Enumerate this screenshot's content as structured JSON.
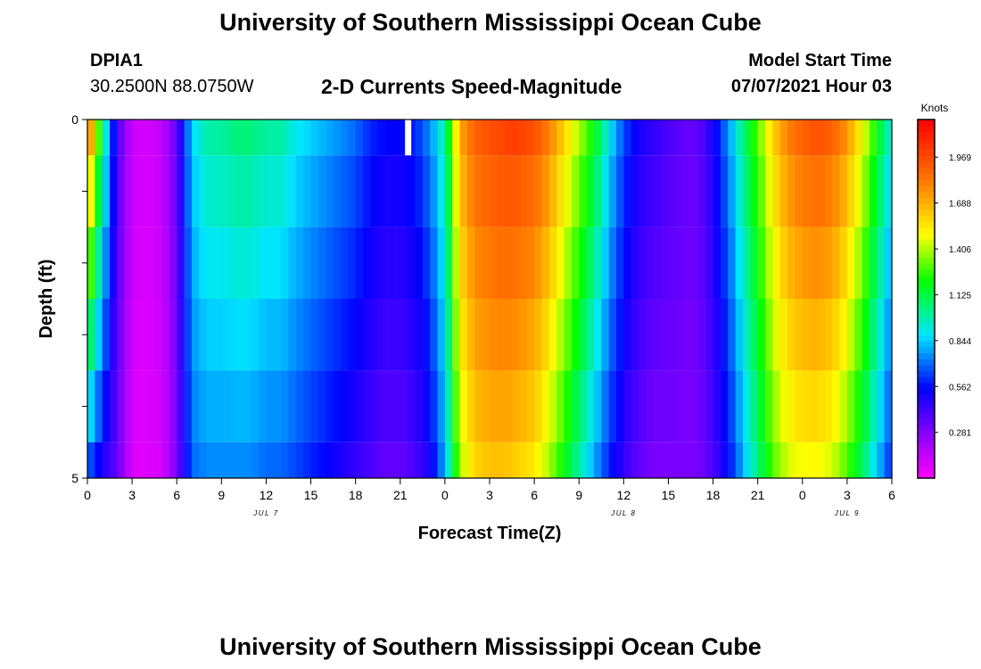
{
  "header": {
    "title": "University of Southern Mississippi Ocean Cube",
    "station": "DPIA1",
    "coords": "30.2500N  88.0750W",
    "plot_title": "2-D Currents Speed-Magnitude",
    "model_label": "Model Start Time",
    "model_time": "07/07/2021 Hour 03",
    "footer_title": "University of Southern Mississippi Ocean Cube"
  },
  "chart_data": {
    "type": "heatmap",
    "title": "2-D Currents Speed-Magnitude",
    "xlabel": "Forecast Time(Z)",
    "ylabel": "Depth (ft)",
    "x_range_hours": [
      0,
      54
    ],
    "y_range": [
      0,
      5
    ],
    "x_tick_labels": [
      "0",
      "3",
      "6",
      "9",
      "12",
      "15",
      "18",
      "21",
      "0",
      "3",
      "6",
      "9",
      "12",
      "15",
      "18",
      "21",
      "0",
      "3",
      "6"
    ],
    "y_tick_labels": [
      "0",
      "5"
    ],
    "date_labels": [
      {
        "text": "JUL 7",
        "hour": 12
      },
      {
        "text": "JUL 8",
        "hour": 36
      },
      {
        "text": "JUL 9",
        "hour": 51
      }
    ],
    "colorbar": {
      "label": "Knots",
      "ticks": [
        "1.969",
        "1.688",
        "1.406",
        "1.125",
        "0.844",
        "0.562",
        "0.281"
      ],
      "tick_values": [
        1.969,
        1.688,
        1.406,
        1.125,
        0.844,
        0.562,
        0.281
      ],
      "vmin": 0.0,
      "vmax": 2.2
    },
    "depth_layers": [
      "0-0.5",
      "0.5-1.5",
      "1.5-2.5",
      "2.5-3.5",
      "3.5-4.5",
      "4.5-5"
    ],
    "speed_knots_by_hour": {
      "surface": [
        1.9,
        1.1,
        0.4,
        0.12,
        0.1,
        0.14,
        0.35,
        0.85,
        1.0,
        1.0,
        1.05,
        1.05,
        1.0,
        1.0,
        0.9,
        0.85,
        0.8,
        0.75,
        0.7,
        0.6,
        0.55,
        0.55,
        0.6,
        0.75,
        1.0,
        1.7,
        1.9,
        1.95,
        2.0,
        2.0,
        1.95,
        1.8,
        1.6,
        1.4,
        1.2,
        0.9,
        0.65,
        0.5,
        0.45,
        0.4,
        0.35,
        0.35,
        0.5,
        0.75,
        1.05,
        1.3,
        1.6,
        1.8,
        1.9,
        1.95,
        1.9,
        1.75,
        1.5,
        1.2,
        0.9
      ],
      "bottom": [
        0.7,
        0.5,
        0.35,
        0.08,
        0.07,
        0.1,
        0.3,
        0.7,
        0.75,
        0.75,
        0.75,
        0.75,
        0.7,
        0.7,
        0.65,
        0.6,
        0.55,
        0.5,
        0.45,
        0.4,
        0.35,
        0.35,
        0.4,
        0.5,
        0.8,
        1.4,
        1.6,
        1.65,
        1.65,
        1.6,
        1.55,
        1.4,
        1.2,
        1.0,
        0.8,
        0.6,
        0.45,
        0.35,
        0.3,
        0.3,
        0.3,
        0.3,
        0.4,
        0.55,
        0.8,
        1.05,
        1.3,
        1.45,
        1.5,
        1.5,
        1.45,
        1.3,
        1.1,
        0.85,
        0.6
      ]
    },
    "missing_data": [
      {
        "hour": 21.5,
        "layer": 0
      }
    ]
  }
}
